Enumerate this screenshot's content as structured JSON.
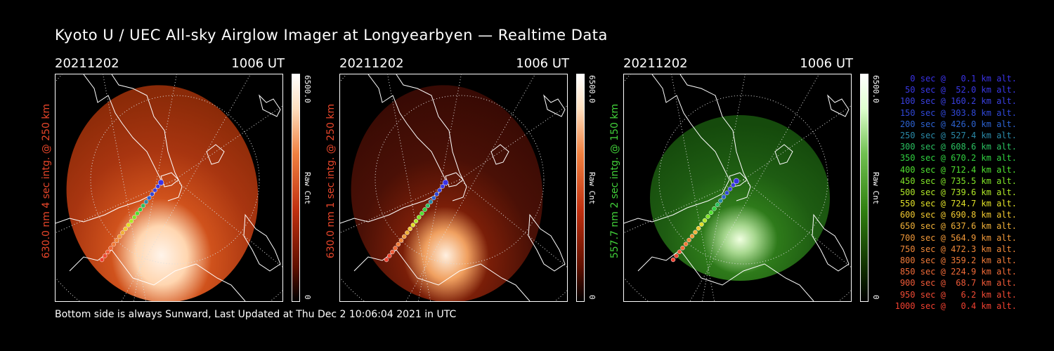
{
  "title": "Kyoto U / UEC All-sky Airglow Imager at Longyearbyen — Realtime Data",
  "footer": "Bottom side is always Sunward, Last Updated at Thu Dec  2 10:06:04 2021 in UTC",
  "panels": [
    {
      "date": "20211202",
      "time": "1006 UT",
      "ylabel": "630.0 nm 4 sec intg. @ 250 km",
      "ycolor": "#e8462a",
      "cb_max": "6500.0",
      "cb_min": "0",
      "cb_label": "Raw Cnt",
      "scheme": "red"
    },
    {
      "date": "20211202",
      "time": "1006 UT",
      "ylabel": "630.0 nm 1 sec intg. @ 250 km",
      "ycolor": "#e8462a",
      "cb_max": "6500.0",
      "cb_min": "0",
      "cb_label": "Raw Cnt",
      "scheme": "red"
    },
    {
      "date": "20211202",
      "time": "1006 UT",
      "ylabel": "557.7 nm 2 sec intg. @ 150 km",
      "ycolor": "#42d13a",
      "cb_max": "6500.0",
      "cb_min": "0",
      "cb_label": "Raw Cnt",
      "scheme": "green"
    }
  ],
  "legend": [
    {
      "text": "   0 sec @   0.1 km alt.",
      "color": "#3a32e6"
    },
    {
      "text": "  50 sec @  52.0 km alt.",
      "color": "#3a38e6"
    },
    {
      "text": " 100 sec @ 160.2 km alt.",
      "color": "#3a40e0"
    },
    {
      "text": " 150 sec @ 303.8 km alt.",
      "color": "#3048d8"
    },
    {
      "text": " 200 sec @ 426.0 km alt.",
      "color": "#2c62d0"
    },
    {
      "text": " 250 sec @ 527.4 km alt.",
      "color": "#2a8aa8"
    },
    {
      "text": " 300 sec @ 608.6 km alt.",
      "color": "#2ac060"
    },
    {
      "text": " 350 sec @ 670.2 km alt.",
      "color": "#30d040"
    },
    {
      "text": " 400 sec @ 712.4 km alt.",
      "color": "#50e030"
    },
    {
      "text": " 450 sec @ 735.5 km alt.",
      "color": "#80e428"
    },
    {
      "text": " 500 sec @ 739.6 km alt.",
      "color": "#b0e828"
    },
    {
      "text": " 550 sec @ 724.7 km alt.",
      "color": "#e0e028"
    },
    {
      "text": " 600 sec @ 690.8 km alt.",
      "color": "#f0c830"
    },
    {
      "text": " 650 sec @ 637.6 km alt.",
      "color": "#f0b038"
    },
    {
      "text": " 700 sec @ 564.9 km alt.",
      "color": "#f09838"
    },
    {
      "text": " 750 sec @ 472.3 km alt.",
      "color": "#f08838"
    },
    {
      "text": " 800 sec @ 359.2 km alt.",
      "color": "#f07a38"
    },
    {
      "text": " 850 sec @ 224.9 km alt.",
      "color": "#f06a38"
    },
    {
      "text": " 900 sec @  68.7 km alt.",
      "color": "#f05a38"
    },
    {
      "text": " 950 sec @   6.2 km alt.",
      "color": "#f04a34"
    },
    {
      "text": "1000 sec @   0.4 km alt.",
      "color": "#f04030"
    }
  ]
}
